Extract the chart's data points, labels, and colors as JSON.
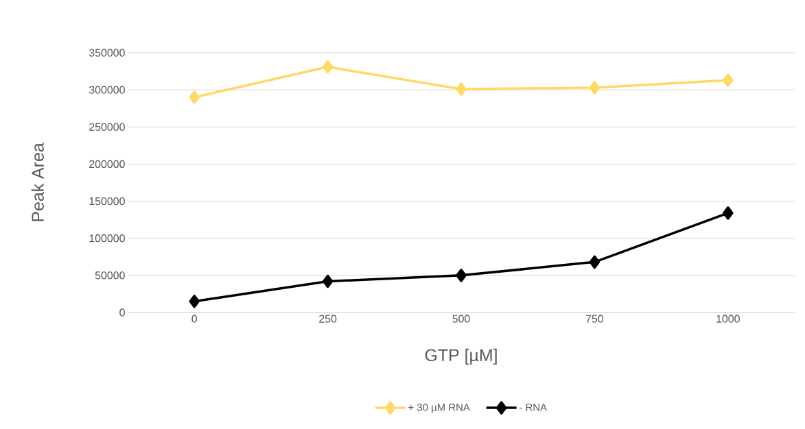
{
  "chart_data": {
    "type": "line",
    "xlabel": "GTP [µM]",
    "ylabel": "Peak Area",
    "categories": [
      "0",
      "250",
      "500",
      "750",
      "1000"
    ],
    "series": [
      {
        "name": "+ 30 µM RNA",
        "color": "#ffd966",
        "values": [
          290000,
          331000,
          301000,
          303000,
          313000
        ]
      },
      {
        "name": "- RNA",
        "color": "#000000",
        "values": [
          15000,
          42000,
          50000,
          68000,
          134000
        ]
      }
    ],
    "ylim": [
      0,
      350000
    ],
    "yticks": [
      0,
      50000,
      100000,
      150000,
      200000,
      250000,
      300000,
      350000
    ],
    "grid": "y",
    "legend": "bottom",
    "marker": "diamond"
  }
}
